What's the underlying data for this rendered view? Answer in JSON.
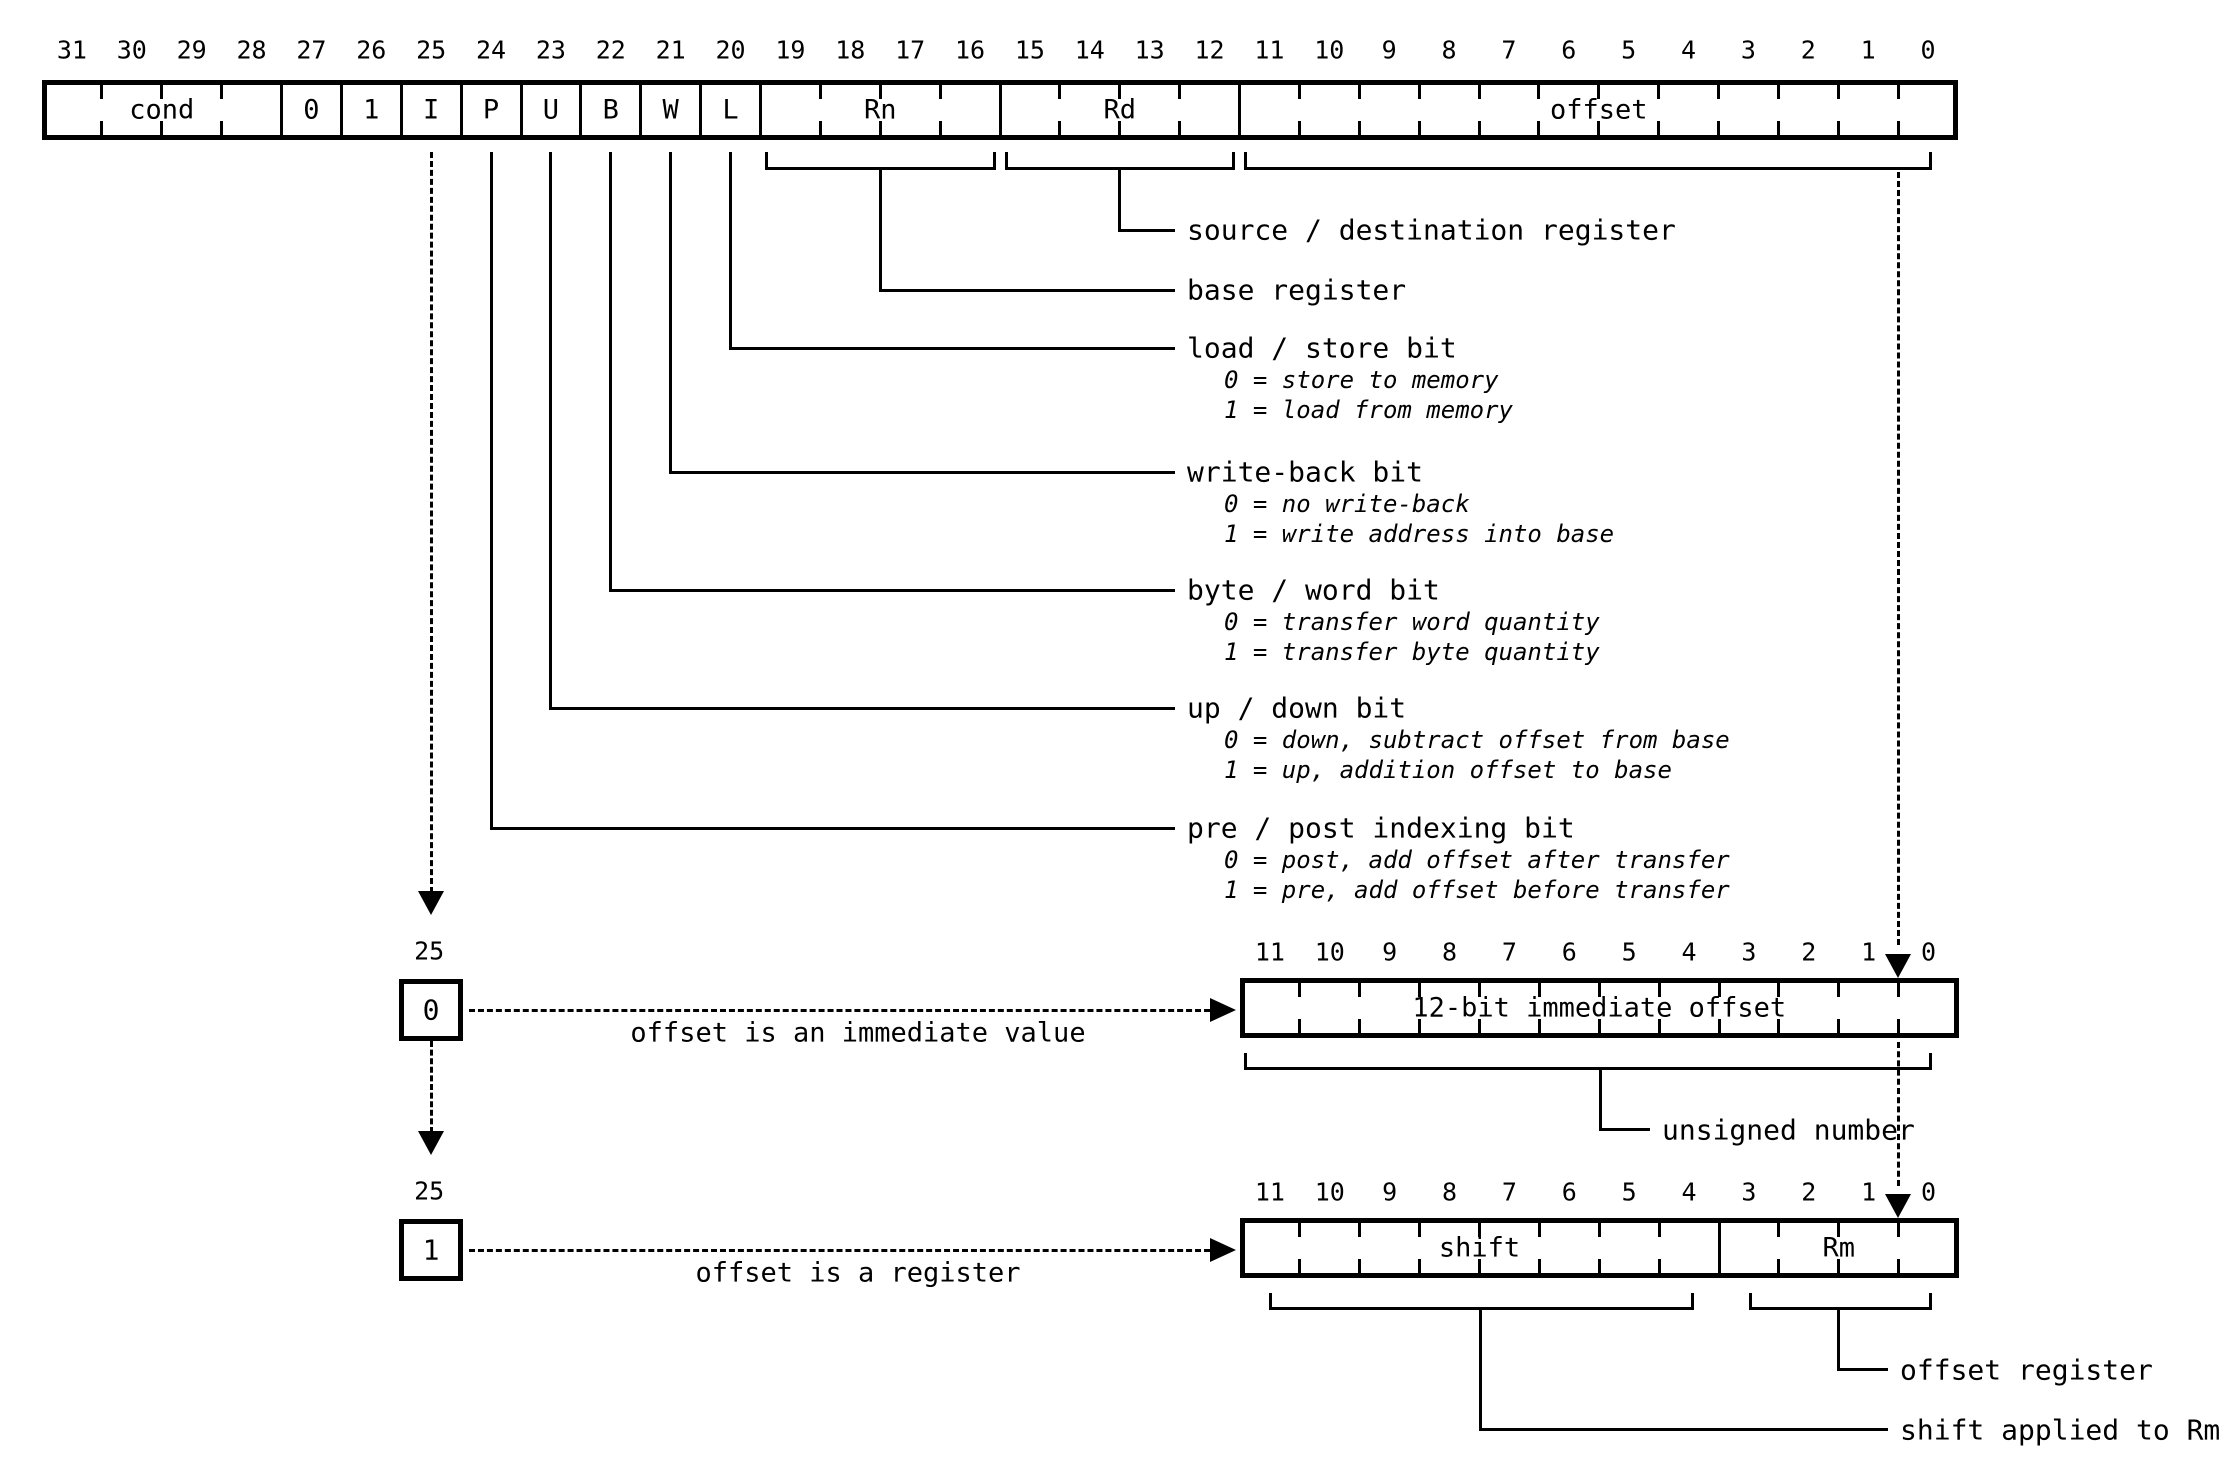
{
  "diagram": {
    "background": "#ffffff",
    "ink": "#000000",
    "top_register": {
      "bit_labels": [
        "31",
        "30",
        "29",
        "28",
        "27",
        "26",
        "25",
        "24",
        "23",
        "22",
        "21",
        "20",
        "19",
        "18",
        "17",
        "16",
        "15",
        "14",
        "13",
        "12",
        "11",
        "10",
        "9",
        "8",
        "7",
        "6",
        "5",
        "4",
        "3",
        "2",
        "1",
        "0"
      ],
      "fields": [
        {
          "label": "cond",
          "hi": 31,
          "lo": 28
        },
        {
          "label": "0",
          "hi": 27,
          "lo": 27
        },
        {
          "label": "1",
          "hi": 26,
          "lo": 26
        },
        {
          "label": "I",
          "hi": 25,
          "lo": 25
        },
        {
          "label": "P",
          "hi": 24,
          "lo": 24
        },
        {
          "label": "U",
          "hi": 23,
          "lo": 23
        },
        {
          "label": "B",
          "hi": 22,
          "lo": 22
        },
        {
          "label": "W",
          "hi": 21,
          "lo": 21
        },
        {
          "label": "L",
          "hi": 20,
          "lo": 20
        },
        {
          "label": "Rn",
          "hi": 19,
          "lo": 16
        },
        {
          "label": "Rd",
          "hi": 15,
          "lo": 12
        },
        {
          "label": "offset",
          "hi": 11,
          "lo": 0
        }
      ]
    },
    "annotations": [
      {
        "id": "source-destination-register",
        "label": "source / destination register",
        "sub": []
      },
      {
        "id": "base-register",
        "label": "base register",
        "sub": []
      },
      {
        "id": "load-store-bit",
        "label": "load / store bit",
        "sub": [
          "0 = store to memory",
          "1 = load from memory"
        ]
      },
      {
        "id": "write-back-bit",
        "label": "write-back bit",
        "sub": [
          "0 = no write-back",
          "1 = write address into base"
        ]
      },
      {
        "id": "byte-word-bit",
        "label": "byte / word bit",
        "sub": [
          "0 = transfer word quantity",
          "1 = transfer byte quantity"
        ]
      },
      {
        "id": "up-down-bit",
        "label": "up / down bit",
        "sub": [
          "0 = down, subtract offset from base",
          "1 = up, addition offset to base"
        ]
      },
      {
        "id": "pre-post-indexing-bit",
        "label": "pre / post indexing bit",
        "sub": [
          "0 = post, add offset after transfer",
          "1 = pre, add offset before transfer"
        ]
      }
    ],
    "immediate_branch": {
      "bit_number": "25",
      "bit_value": "0",
      "caption": "offset is an immediate value",
      "register": {
        "bit_labels": [
          "11",
          "10",
          "9",
          "8",
          "7",
          "6",
          "5",
          "4",
          "3",
          "2",
          "1",
          "0"
        ],
        "fields": [
          {
            "label": "12-bit immediate offset",
            "hi": 11,
            "lo": 0
          }
        ]
      },
      "annotation": "unsigned number"
    },
    "register_branch": {
      "bit_number": "25",
      "bit_value": "1",
      "caption": "offset is a register",
      "register": {
        "bit_labels": [
          "11",
          "10",
          "9",
          "8",
          "7",
          "6",
          "5",
          "4",
          "3",
          "2",
          "1",
          "0"
        ],
        "fields": [
          {
            "label": "shift",
            "hi": 11,
            "lo": 4
          },
          {
            "label": "Rm",
            "hi": 3,
            "lo": 0
          }
        ]
      },
      "annotations": [
        {
          "id": "offset-register",
          "label": "offset register"
        },
        {
          "id": "shift-applied-to-rm",
          "label": "shift applied to Rm"
        }
      ]
    }
  }
}
